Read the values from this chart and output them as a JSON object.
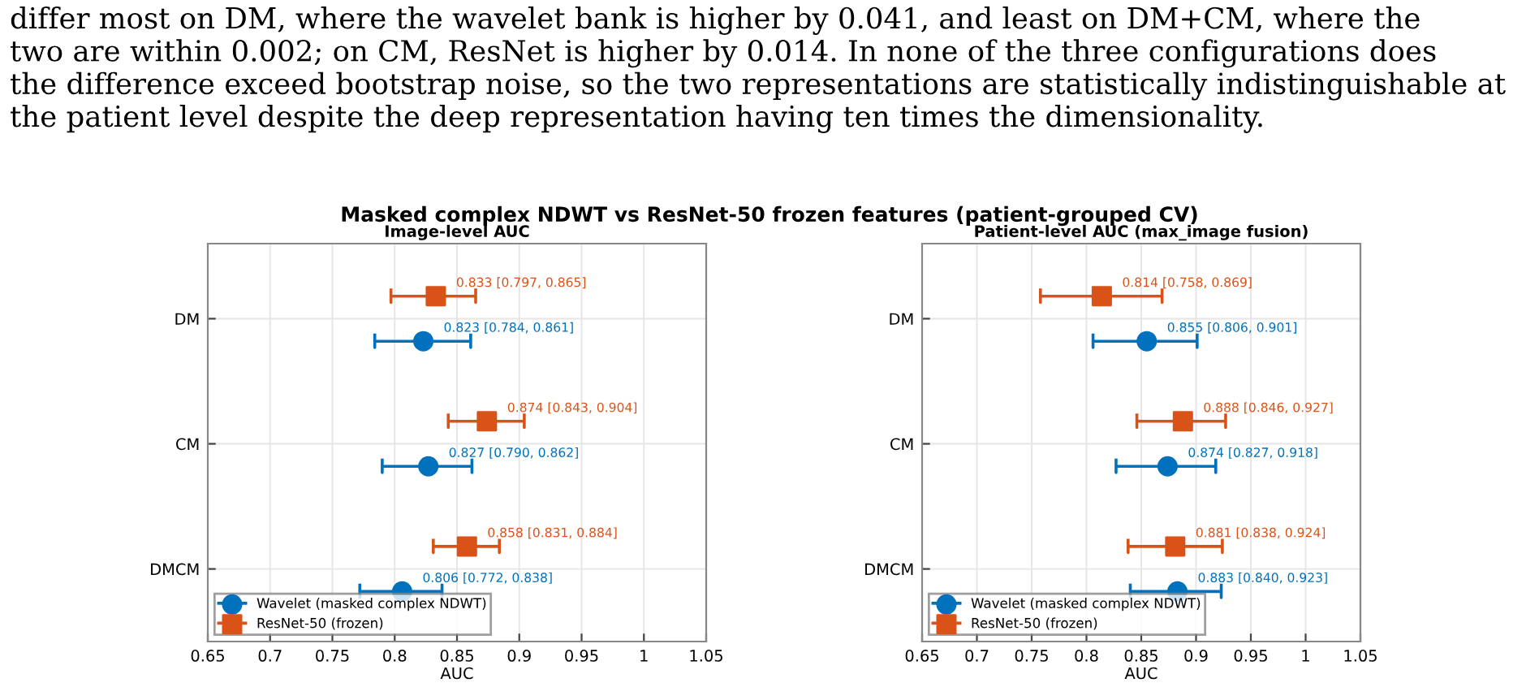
{
  "chart_data": [
    {
      "type": "scatter",
      "orientation": "horizontal",
      "title": "Masked complex NDWT vs ResNet-50 frozen features (patient-grouped CV)",
      "subtitle": "Image-level AUC",
      "xlabel": "AUC",
      "annotations": [
        "differ most on DM, where the wavelet bank is higher by 0.041, and least on DM+CM, where the\ntwo are within 0.002; on CM, ResNet is higher by 0.014. In none of the three configurations does\nthe difference exceed bootstrap noise, so the two representations are statistically indistinguishable at\nthe patient level despite the deep representation having ten times the dimensionality."
      ],
      "categories": [
        "DM",
        "CM",
        "DMCM"
      ],
      "series": [
        {
          "name": "Wavelet (masked complex NDWT)",
          "color": "#0072bd",
          "marker": "circle",
          "values": [
            0.823,
            0.827,
            0.806
          ],
          "errors": [
            [
              0.784,
              0.861
            ],
            [
              0.79,
              0.862
            ],
            [
              0.772,
              0.838
            ]
          ],
          "value_labels": [
            "0.823 [0.784, 0.861]",
            "0.827 [0.790, 0.862]",
            "0.806 [0.772, 0.838]"
          ]
        },
        {
          "name": "ResNet-50 (frozen)",
          "color": "#d95319",
          "marker": "square",
          "values": [
            0.833,
            0.874,
            0.858
          ],
          "errors": [
            [
              0.797,
              0.865
            ],
            [
              0.843,
              0.904
            ],
            [
              0.831,
              0.884
            ]
          ],
          "value_labels": [
            "0.833 [0.797, 0.865]",
            "0.874 [0.843, 0.904]",
            "0.858 [0.831, 0.884]"
          ]
        }
      ],
      "xlim": [
        0.65,
        1.05
      ],
      "xticks": [
        0.65,
        0.7,
        0.75,
        0.8,
        0.85,
        0.9,
        0.95,
        1,
        1.05
      ],
      "grid": true,
      "legend": "bottom left"
    },
    {
      "type": "scatter",
      "orientation": "horizontal",
      "subtitle": "Patient-level AUC (max_image fusion)",
      "xlabel": "AUC",
      "categories": [
        "DM",
        "CM",
        "DMCM"
      ],
      "series": [
        {
          "name": "Wavelet (masked complex NDWT)",
          "color": "#0072bd",
          "marker": "circle",
          "values": [
            0.855,
            0.874,
            0.883
          ],
          "errors": [
            [
              0.806,
              0.901
            ],
            [
              0.827,
              0.918
            ],
            [
              0.84,
              0.923
            ]
          ],
          "value_labels": [
            "0.855 [0.806, 0.901]",
            "0.874 [0.827, 0.918]",
            "0.883 [0.840, 0.923]"
          ]
        },
        {
          "name": "ResNet-50 (frozen)",
          "color": "#d95319",
          "marker": "square",
          "values": [
            0.814,
            0.888,
            0.881
          ],
          "errors": [
            [
              0.758,
              0.869
            ],
            [
              0.846,
              0.927
            ],
            [
              0.838,
              0.924
            ]
          ],
          "value_labels": [
            "0.814 [0.758, 0.869]",
            "0.888 [0.846, 0.927]",
            "0.881 [0.838, 0.924]"
          ]
        }
      ],
      "xlim": [
        0.65,
        1.05
      ],
      "xticks": [
        0.65,
        0.7,
        0.75,
        0.8,
        0.85,
        0.9,
        0.95,
        1,
        1.05
      ],
      "grid": true,
      "legend": "bottom left"
    }
  ]
}
